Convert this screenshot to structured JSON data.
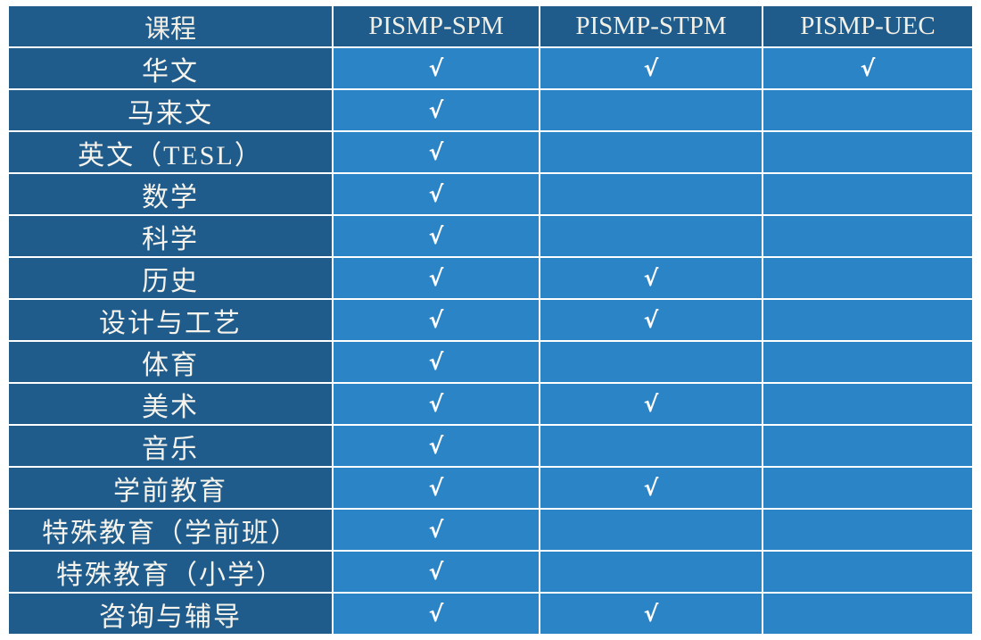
{
  "colors": {
    "dark_blue_bg": "#1f5c8b",
    "light_blue_bg": "#2b84c6",
    "border": "#ffffff",
    "header_text": "#f2efe6",
    "course_text": "#f5f3ec",
    "check_text": "#ffffff",
    "page_background": "#ffffff"
  },
  "table": {
    "checkmark_glyph": "√",
    "header": {
      "course": "课程",
      "col_spm": "PISMP-SPM",
      "col_stpm": "PISMP-STPM",
      "col_uec": "PISMP-UEC"
    },
    "rows": [
      {
        "course": "华文",
        "pismp_spm": true,
        "pismp_stpm": true,
        "pismp_uec": true
      },
      {
        "course": "马来文",
        "pismp_spm": true,
        "pismp_stpm": false,
        "pismp_uec": false
      },
      {
        "course": "英文（TESL）",
        "pismp_spm": true,
        "pismp_stpm": false,
        "pismp_uec": false
      },
      {
        "course": "数学",
        "pismp_spm": true,
        "pismp_stpm": false,
        "pismp_uec": false
      },
      {
        "course": "科学",
        "pismp_spm": true,
        "pismp_stpm": false,
        "pismp_uec": false
      },
      {
        "course": "历史",
        "pismp_spm": true,
        "pismp_stpm": true,
        "pismp_uec": false
      },
      {
        "course": "设计与工艺",
        "pismp_spm": true,
        "pismp_stpm": true,
        "pismp_uec": false
      },
      {
        "course": "体育",
        "pismp_spm": true,
        "pismp_stpm": false,
        "pismp_uec": false
      },
      {
        "course": "美术",
        "pismp_spm": true,
        "pismp_stpm": true,
        "pismp_uec": false
      },
      {
        "course": "音乐",
        "pismp_spm": true,
        "pismp_stpm": false,
        "pismp_uec": false
      },
      {
        "course": "学前教育",
        "pismp_spm": true,
        "pismp_stpm": true,
        "pismp_uec": false
      },
      {
        "course": "特殊教育（学前班）",
        "pismp_spm": true,
        "pismp_stpm": false,
        "pismp_uec": false
      },
      {
        "course": "特殊教育（小学）",
        "pismp_spm": true,
        "pismp_stpm": false,
        "pismp_uec": false
      },
      {
        "course": "咨询与辅导",
        "pismp_spm": true,
        "pismp_stpm": true,
        "pismp_uec": false
      }
    ]
  }
}
